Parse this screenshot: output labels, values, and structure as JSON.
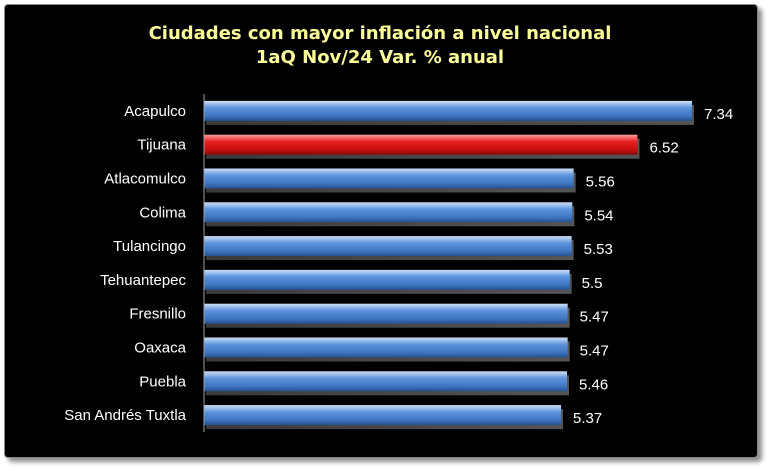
{
  "chart_data": {
    "type": "bar",
    "orientation": "horizontal",
    "title": "Ciudades con mayor inflación a nivel nacional",
    "subtitle": "1aQ Nov/24 Var. % anual",
    "categories": [
      "Acapulco",
      "Tijuana",
      "Atlacomulco",
      "Colima",
      "Tulancingo",
      "Tehuantepec",
      "Fresnillo",
      "Oaxaca",
      "Puebla",
      "San Andrés Tuxtla"
    ],
    "values": [
      7.34,
      6.52,
      5.56,
      5.54,
      5.53,
      5.5,
      5.47,
      5.47,
      5.46,
      5.37
    ],
    "value_labels": [
      "7.34",
      "6.52",
      "5.56",
      "5.54",
      "5.53",
      "5.5",
      "5.47",
      "5.47",
      "5.46",
      "5.37"
    ],
    "highlight_index": 1,
    "xlim": [
      0,
      7.34
    ],
    "grid": false,
    "legend": "none",
    "colors": {
      "background": "#000000",
      "title": "#ffff99",
      "bar": "#4a86d4",
      "bar_highlight": "#dd1a1a",
      "text": "#ffffff"
    }
  }
}
